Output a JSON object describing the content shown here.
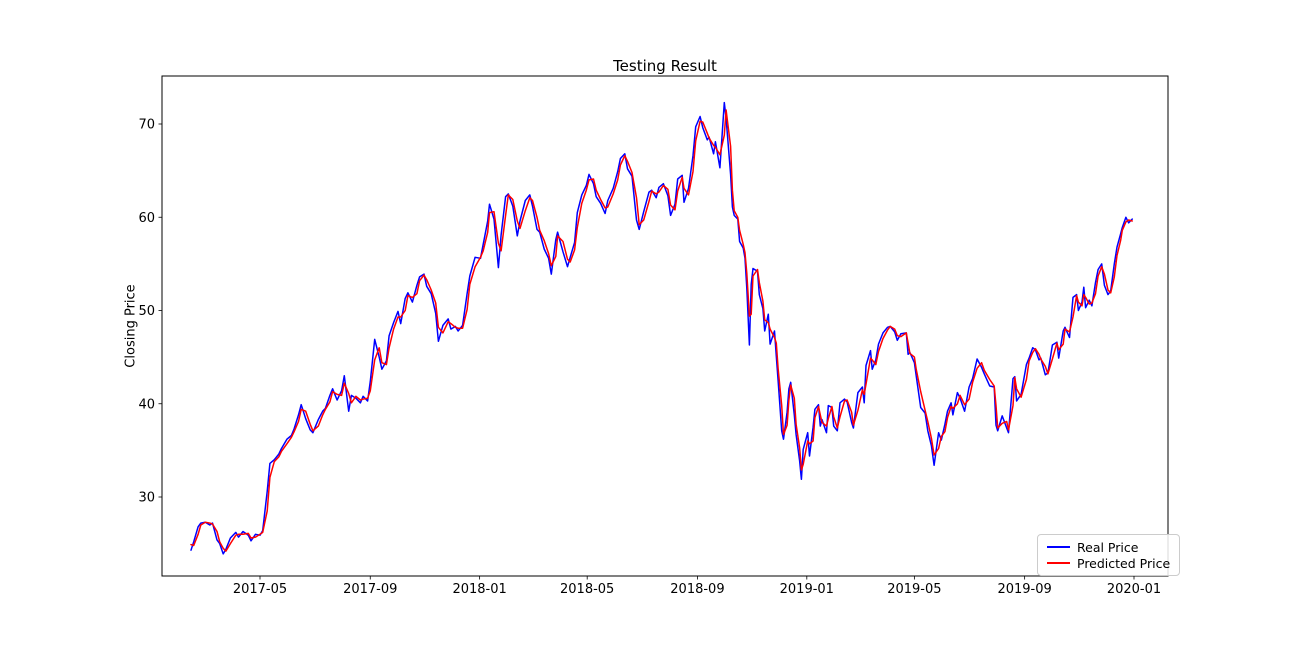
{
  "title": "Testing Result",
  "ylabel": "Closing Price",
  "legend": {
    "real_label": "Real Price",
    "predicted_label": "Predicted Price"
  },
  "colors": {
    "real": "#0000ff",
    "predicted": "#ff0000",
    "frame": "#000000",
    "background": "#ffffff",
    "legend_border": "#cccccc"
  },
  "chart_data": {
    "type": "line",
    "title": "Testing Result",
    "xlabel": "",
    "ylabel": "Closing Price",
    "legend_position": "lower right",
    "grid": false,
    "ylim": [
      21.5,
      75.1
    ],
    "y_ticks": [
      30,
      40,
      50,
      60,
      70
    ],
    "x_ticks": [
      {
        "label": "2017-05",
        "date": "2017-05-01"
      },
      {
        "label": "2017-09",
        "date": "2017-09-01"
      },
      {
        "label": "2018-01",
        "date": "2018-01-01"
      },
      {
        "label": "2018-05",
        "date": "2018-05-01"
      },
      {
        "label": "2018-09",
        "date": "2018-09-01"
      },
      {
        "label": "2019-01",
        "date": "2019-01-01"
      },
      {
        "label": "2019-05",
        "date": "2019-05-01"
      },
      {
        "label": "2019-09",
        "date": "2019-09-01"
      },
      {
        "label": "2020-01",
        "date": "2020-01-01"
      }
    ],
    "series_names": [
      "Real Price",
      "Predicted Price"
    ],
    "points_format": [
      "date",
      "real_price",
      "predicted_price"
    ],
    "points": [
      [
        "2017-02-13",
        24.3,
        24.9
      ],
      [
        "2017-02-16",
        25.2,
        24.8
      ],
      [
        "2017-02-21",
        26.8,
        26.0
      ],
      [
        "2017-02-24",
        27.2,
        27.0
      ],
      [
        "2017-03-01",
        27.3,
        27.3
      ],
      [
        "2017-03-06",
        27.0,
        27.2
      ],
      [
        "2017-03-09",
        27.2,
        27.1
      ],
      [
        "2017-03-14",
        25.4,
        26.3
      ],
      [
        "2017-03-17",
        25.0,
        25.2
      ],
      [
        "2017-03-21",
        23.9,
        24.5
      ],
      [
        "2017-03-24",
        24.4,
        24.2
      ],
      [
        "2017-03-29",
        25.6,
        25.0
      ],
      [
        "2017-04-04",
        26.2,
        25.9
      ],
      [
        "2017-04-07",
        25.7,
        26.0
      ],
      [
        "2017-04-12",
        26.3,
        26.0
      ],
      [
        "2017-04-18",
        25.9,
        26.1
      ],
      [
        "2017-04-21",
        25.3,
        25.6
      ],
      [
        "2017-04-26",
        26.0,
        25.7
      ],
      [
        "2017-05-01",
        25.9,
        26.0
      ],
      [
        "2017-05-04",
        26.4,
        26.2
      ],
      [
        "2017-05-09",
        30.6,
        28.5
      ],
      [
        "2017-05-12",
        33.6,
        32.1
      ],
      [
        "2017-05-17",
        34.0,
        33.8
      ],
      [
        "2017-05-22",
        34.6,
        34.3
      ],
      [
        "2017-05-25",
        35.2,
        34.9
      ],
      [
        "2017-05-31",
        36.2,
        35.7
      ],
      [
        "2017-06-05",
        36.6,
        36.4
      ],
      [
        "2017-06-08",
        37.3,
        37.0
      ],
      [
        "2017-06-13",
        38.8,
        38.1
      ],
      [
        "2017-06-16",
        39.9,
        39.4
      ],
      [
        "2017-06-21",
        38.4,
        39.2
      ],
      [
        "2017-06-26",
        37.2,
        37.8
      ],
      [
        "2017-06-29",
        36.9,
        37.1
      ],
      [
        "2017-07-05",
        38.3,
        37.6
      ],
      [
        "2017-07-10",
        39.2,
        38.8
      ],
      [
        "2017-07-13",
        39.5,
        39.4
      ],
      [
        "2017-07-18",
        40.9,
        40.2
      ],
      [
        "2017-07-21",
        41.6,
        41.3
      ],
      [
        "2017-07-26",
        40.4,
        41.0
      ],
      [
        "2017-07-31",
        41.4,
        40.9
      ],
      [
        "2017-08-03",
        43.0,
        42.2
      ],
      [
        "2017-08-08",
        39.2,
        41.1
      ],
      [
        "2017-08-11",
        40.9,
        40.1
      ],
      [
        "2017-08-16",
        40.6,
        40.8
      ],
      [
        "2017-08-21",
        40.1,
        40.4
      ],
      [
        "2017-08-24",
        40.8,
        40.5
      ],
      [
        "2017-08-29",
        40.3,
        40.6
      ],
      [
        "2017-09-01",
        42.4,
        41.4
      ],
      [
        "2017-09-06",
        46.9,
        44.7
      ],
      [
        "2017-09-11",
        45.0,
        46.0
      ],
      [
        "2017-09-14",
        43.7,
        44.4
      ],
      [
        "2017-09-19",
        44.6,
        44.2
      ],
      [
        "2017-09-22",
        47.3,
        46.0
      ],
      [
        "2017-09-27",
        48.7,
        48.0
      ],
      [
        "2017-10-02",
        49.9,
        49.3
      ],
      [
        "2017-10-05",
        48.6,
        49.3
      ],
      [
        "2017-10-10",
        51.3,
        50.0
      ],
      [
        "2017-10-13",
        51.9,
        51.6
      ],
      [
        "2017-10-18",
        50.9,
        51.4
      ],
      [
        "2017-10-23",
        52.7,
        51.8
      ],
      [
        "2017-10-26",
        53.6,
        53.2
      ],
      [
        "2017-10-31",
        53.9,
        53.8
      ],
      [
        "2017-11-03",
        52.6,
        53.3
      ],
      [
        "2017-11-08",
        51.8,
        52.2
      ],
      [
        "2017-11-13",
        49.7,
        50.8
      ],
      [
        "2017-11-16",
        46.7,
        48.2
      ],
      [
        "2017-11-21",
        48.4,
        47.6
      ],
      [
        "2017-11-27",
        49.1,
        48.8
      ],
      [
        "2017-11-30",
        48.0,
        48.6
      ],
      [
        "2017-12-05",
        48.3,
        48.2
      ],
      [
        "2017-12-08",
        47.8,
        48.1
      ],
      [
        "2017-12-13",
        48.4,
        48.1
      ],
      [
        "2017-12-18",
        51.8,
        50.1
      ],
      [
        "2017-12-21",
        53.7,
        52.8
      ],
      [
        "2017-12-27",
        55.7,
        54.7
      ],
      [
        "2018-01-02",
        55.6,
        55.7
      ],
      [
        "2018-01-05",
        57.1,
        56.4
      ],
      [
        "2018-01-10",
        59.6,
        58.4
      ],
      [
        "2018-01-12",
        61.4,
        60.5
      ],
      [
        "2018-01-17",
        59.8,
        60.6
      ],
      [
        "2018-01-22",
        54.6,
        57.2
      ],
      [
        "2018-01-25",
        58.1,
        56.4
      ],
      [
        "2018-01-30",
        62.2,
        60.2
      ],
      [
        "2018-02-02",
        62.5,
        62.4
      ],
      [
        "2018-02-07",
        61.2,
        61.9
      ],
      [
        "2018-02-12",
        58.0,
        59.6
      ],
      [
        "2018-02-15",
        59.6,
        58.8
      ],
      [
        "2018-02-21",
        61.8,
        60.7
      ],
      [
        "2018-02-26",
        62.4,
        62.1
      ],
      [
        "2018-03-01",
        61.2,
        61.8
      ],
      [
        "2018-03-06",
        58.7,
        60.0
      ],
      [
        "2018-03-09",
        58.4,
        58.6
      ],
      [
        "2018-03-14",
        56.6,
        57.5
      ],
      [
        "2018-03-19",
        55.6,
        56.1
      ],
      [
        "2018-03-22",
        53.9,
        54.8
      ],
      [
        "2018-03-27",
        57.6,
        55.8
      ],
      [
        "2018-03-29",
        58.4,
        58.0
      ],
      [
        "2018-04-04",
        56.3,
        57.4
      ],
      [
        "2018-04-09",
        54.7,
        55.5
      ],
      [
        "2018-04-12",
        55.7,
        55.2
      ],
      [
        "2018-04-17",
        57.3,
        56.5
      ],
      [
        "2018-04-20",
        60.5,
        58.9
      ],
      [
        "2018-04-25",
        62.4,
        61.5
      ],
      [
        "2018-04-30",
        63.4,
        62.9
      ],
      [
        "2018-05-03",
        64.6,
        64.0
      ],
      [
        "2018-05-08",
        63.6,
        64.1
      ],
      [
        "2018-05-11",
        62.2,
        62.9
      ],
      [
        "2018-05-16",
        61.5,
        61.9
      ],
      [
        "2018-05-21",
        60.4,
        61.0
      ],
      [
        "2018-05-24",
        61.8,
        61.1
      ],
      [
        "2018-05-30",
        63.1,
        62.5
      ],
      [
        "2018-06-04",
        64.9,
        64.0
      ],
      [
        "2018-06-07",
        66.3,
        65.6
      ],
      [
        "2018-06-12",
        66.8,
        66.6
      ],
      [
        "2018-06-15",
        65.2,
        66.0
      ],
      [
        "2018-06-20",
        64.4,
        64.8
      ],
      [
        "2018-06-25",
        59.7,
        62.1
      ],
      [
        "2018-06-28",
        58.7,
        59.2
      ],
      [
        "2018-07-03",
        60.6,
        59.7
      ],
      [
        "2018-07-09",
        62.7,
        61.7
      ],
      [
        "2018-07-12",
        62.9,
        62.8
      ],
      [
        "2018-07-17",
        62.1,
        62.5
      ],
      [
        "2018-07-20",
        63.2,
        62.7
      ],
      [
        "2018-07-25",
        63.6,
        63.4
      ],
      [
        "2018-07-30",
        62.3,
        63.0
      ],
      [
        "2018-08-02",
        60.2,
        61.3
      ],
      [
        "2018-08-07",
        61.4,
        60.8
      ],
      [
        "2018-08-10",
        64.1,
        62.8
      ],
      [
        "2018-08-15",
        64.5,
        64.3
      ],
      [
        "2018-08-17",
        61.6,
        63.1
      ],
      [
        "2018-08-22",
        63.1,
        62.4
      ],
      [
        "2018-08-27",
        66.6,
        64.9
      ],
      [
        "2018-08-30",
        69.7,
        68.2
      ],
      [
        "2018-09-04",
        70.8,
        70.3
      ],
      [
        "2018-09-07",
        69.6,
        70.2
      ],
      [
        "2018-09-12",
        68.3,
        69.0
      ],
      [
        "2018-09-14",
        68.6,
        68.5
      ],
      [
        "2018-09-19",
        66.8,
        67.7
      ],
      [
        "2018-09-21",
        68.1,
        67.5
      ],
      [
        "2018-09-26",
        65.3,
        66.7
      ],
      [
        "2018-10-01",
        72.3,
        68.8
      ],
      [
        "2018-10-03",
        70.6,
        71.5
      ],
      [
        "2018-10-08",
        64.6,
        67.6
      ],
      [
        "2018-10-10",
        61.1,
        62.9
      ],
      [
        "2018-10-12",
        60.2,
        60.7
      ],
      [
        "2018-10-16",
        59.8,
        60.0
      ],
      [
        "2018-10-18",
        57.4,
        58.6
      ],
      [
        "2018-10-22",
        56.7,
        57.1
      ],
      [
        "2018-10-24",
        55.6,
        56.2
      ],
      [
        "2018-10-26",
        52.4,
        54.0
      ],
      [
        "2018-10-29",
        46.3,
        49.4
      ],
      [
        "2018-10-31",
        52.8,
        49.6
      ],
      [
        "2018-11-02",
        54.5,
        53.7
      ],
      [
        "2018-11-07",
        54.2,
        54.4
      ],
      [
        "2018-11-09",
        51.7,
        53.0
      ],
      [
        "2018-11-13",
        50.2,
        51.0
      ],
      [
        "2018-11-15",
        47.8,
        49.0
      ],
      [
        "2018-11-19",
        49.6,
        48.7
      ],
      [
        "2018-11-21",
        46.4,
        48.0
      ],
      [
        "2018-11-26",
        47.8,
        47.1
      ],
      [
        "2018-11-28",
        45.1,
        46.5
      ],
      [
        "2018-11-30",
        42.5,
        43.8
      ],
      [
        "2018-12-04",
        37.1,
        39.8
      ],
      [
        "2018-12-06",
        36.2,
        36.7
      ],
      [
        "2018-12-10",
        39.1,
        37.7
      ],
      [
        "2018-12-12",
        41.6,
        40.4
      ],
      [
        "2018-12-14",
        42.3,
        42.0
      ],
      [
        "2018-12-18",
        38.8,
        40.6
      ],
      [
        "2018-12-20",
        36.7,
        37.8
      ],
      [
        "2018-12-24",
        33.9,
        35.3
      ],
      [
        "2018-12-26",
        31.9,
        32.9
      ],
      [
        "2018-12-28",
        35.1,
        33.5
      ],
      [
        "2019-01-02",
        36.9,
        36.0
      ],
      [
        "2019-01-04",
        34.4,
        35.7
      ],
      [
        "2019-01-08",
        37.5,
        36.0
      ],
      [
        "2019-01-10",
        39.4,
        38.5
      ],
      [
        "2019-01-14",
        39.9,
        39.7
      ],
      [
        "2019-01-16",
        37.6,
        38.8
      ],
      [
        "2019-01-18",
        38.3,
        38.0
      ],
      [
        "2019-01-23",
        36.9,
        37.6
      ],
      [
        "2019-01-25",
        39.8,
        38.4
      ],
      [
        "2019-01-29",
        39.6,
        39.7
      ],
      [
        "2019-01-31",
        37.6,
        38.6
      ],
      [
        "2019-02-04",
        37.1,
        37.4
      ],
      [
        "2019-02-07",
        40.1,
        38.6
      ],
      [
        "2019-02-12",
        40.5,
        40.3
      ],
      [
        "2019-02-15",
        40.2,
        40.4
      ],
      [
        "2019-02-20",
        38.0,
        39.1
      ],
      [
        "2019-02-22",
        37.4,
        37.7
      ],
      [
        "2019-02-27",
        41.2,
        39.3
      ],
      [
        "2019-03-04",
        41.8,
        41.5
      ],
      [
        "2019-03-06",
        40.1,
        41.0
      ],
      [
        "2019-03-08",
        44.1,
        42.1
      ],
      [
        "2019-03-13",
        45.7,
        44.9
      ],
      [
        "2019-03-15",
        43.7,
        44.7
      ],
      [
        "2019-03-19",
        44.7,
        44.2
      ],
      [
        "2019-03-22",
        46.4,
        45.6
      ],
      [
        "2019-03-27",
        47.6,
        47.0
      ],
      [
        "2019-04-01",
        48.2,
        47.9
      ],
      [
        "2019-04-04",
        48.3,
        48.3
      ],
      [
        "2019-04-09",
        47.7,
        48.0
      ],
      [
        "2019-04-12",
        46.8,
        47.3
      ],
      [
        "2019-04-16",
        47.5,
        47.2
      ],
      [
        "2019-04-22",
        47.6,
        47.6
      ],
      [
        "2019-04-24",
        45.3,
        46.5
      ],
      [
        "2019-04-26",
        45.5,
        45.4
      ],
      [
        "2019-05-01",
        44.4,
        45.0
      ],
      [
        "2019-05-03",
        43.0,
        43.7
      ],
      [
        "2019-05-08",
        39.6,
        41.3
      ],
      [
        "2019-05-13",
        39.0,
        39.3
      ],
      [
        "2019-05-16",
        37.1,
        38.1
      ],
      [
        "2019-05-20",
        35.5,
        36.3
      ],
      [
        "2019-05-23",
        33.4,
        34.5
      ],
      [
        "2019-05-28",
        36.9,
        35.2
      ],
      [
        "2019-05-31",
        36.1,
        36.5
      ],
      [
        "2019-06-04",
        37.8,
        37.0
      ],
      [
        "2019-06-07",
        39.2,
        38.5
      ],
      [
        "2019-06-11",
        40.1,
        39.7
      ],
      [
        "2019-06-13",
        38.8,
        39.5
      ],
      [
        "2019-06-18",
        41.2,
        40.0
      ],
      [
        "2019-06-21",
        40.6,
        40.9
      ],
      [
        "2019-06-26",
        39.2,
        39.9
      ],
      [
        "2019-07-01",
        41.8,
        40.5
      ],
      [
        "2019-07-05",
        42.7,
        42.3
      ],
      [
        "2019-07-10",
        44.8,
        43.8
      ],
      [
        "2019-07-15",
        43.9,
        44.4
      ],
      [
        "2019-07-18",
        43.2,
        43.6
      ],
      [
        "2019-07-24",
        41.9,
        42.6
      ],
      [
        "2019-07-29",
        41.8,
        41.9
      ],
      [
        "2019-07-31",
        37.7,
        39.8
      ],
      [
        "2019-08-02",
        37.1,
        37.4
      ],
      [
        "2019-08-07",
        38.7,
        37.9
      ],
      [
        "2019-08-12",
        37.4,
        38.1
      ],
      [
        "2019-08-14",
        36.9,
        37.2
      ],
      [
        "2019-08-19",
        42.7,
        39.8
      ],
      [
        "2019-08-21",
        42.9,
        42.8
      ],
      [
        "2019-08-23",
        40.3,
        41.6
      ],
      [
        "2019-08-28",
        41.0,
        40.7
      ],
      [
        "2019-09-03",
        44.2,
        42.6
      ],
      [
        "2019-09-06",
        44.9,
        44.6
      ],
      [
        "2019-09-10",
        46.0,
        45.5
      ],
      [
        "2019-09-13",
        45.8,
        45.9
      ],
      [
        "2019-09-17",
        44.7,
        45.3
      ],
      [
        "2019-09-19",
        44.9,
        44.8
      ],
      [
        "2019-09-24",
        43.1,
        44.0
      ],
      [
        "2019-09-27",
        43.3,
        43.2
      ],
      [
        "2019-10-02",
        46.3,
        44.8
      ],
      [
        "2019-10-07",
        46.6,
        46.5
      ],
      [
        "2019-10-09",
        44.9,
        45.8
      ],
      [
        "2019-10-14",
        47.8,
        46.4
      ],
      [
        "2019-10-16",
        48.2,
        48.0
      ],
      [
        "2019-10-21",
        47.1,
        47.7
      ],
      [
        "2019-10-25",
        51.4,
        49.3
      ],
      [
        "2019-10-29",
        51.7,
        51.6
      ],
      [
        "2019-10-31",
        50.0,
        50.9
      ],
      [
        "2019-11-04",
        50.9,
        50.5
      ],
      [
        "2019-11-06",
        52.5,
        51.7
      ],
      [
        "2019-11-08",
        50.3,
        51.4
      ],
      [
        "2019-11-12",
        51.1,
        50.7
      ],
      [
        "2019-11-15",
        50.5,
        50.8
      ],
      [
        "2019-11-19",
        53.0,
        51.8
      ],
      [
        "2019-11-22",
        54.4,
        53.7
      ],
      [
        "2019-11-26",
        55.0,
        54.7
      ],
      [
        "2019-11-29",
        52.7,
        53.9
      ],
      [
        "2019-12-03",
        51.7,
        52.2
      ],
      [
        "2019-12-06",
        52.1,
        51.9
      ],
      [
        "2019-12-10",
        55.0,
        53.6
      ],
      [
        "2019-12-13",
        56.8,
        55.9
      ],
      [
        "2019-12-17",
        58.2,
        57.5
      ],
      [
        "2019-12-19",
        58.9,
        58.6
      ],
      [
        "2019-12-23",
        60.0,
        59.5
      ],
      [
        "2019-12-26",
        59.4,
        59.7
      ],
      [
        "2019-12-30",
        59.8,
        59.6
      ]
    ]
  }
}
